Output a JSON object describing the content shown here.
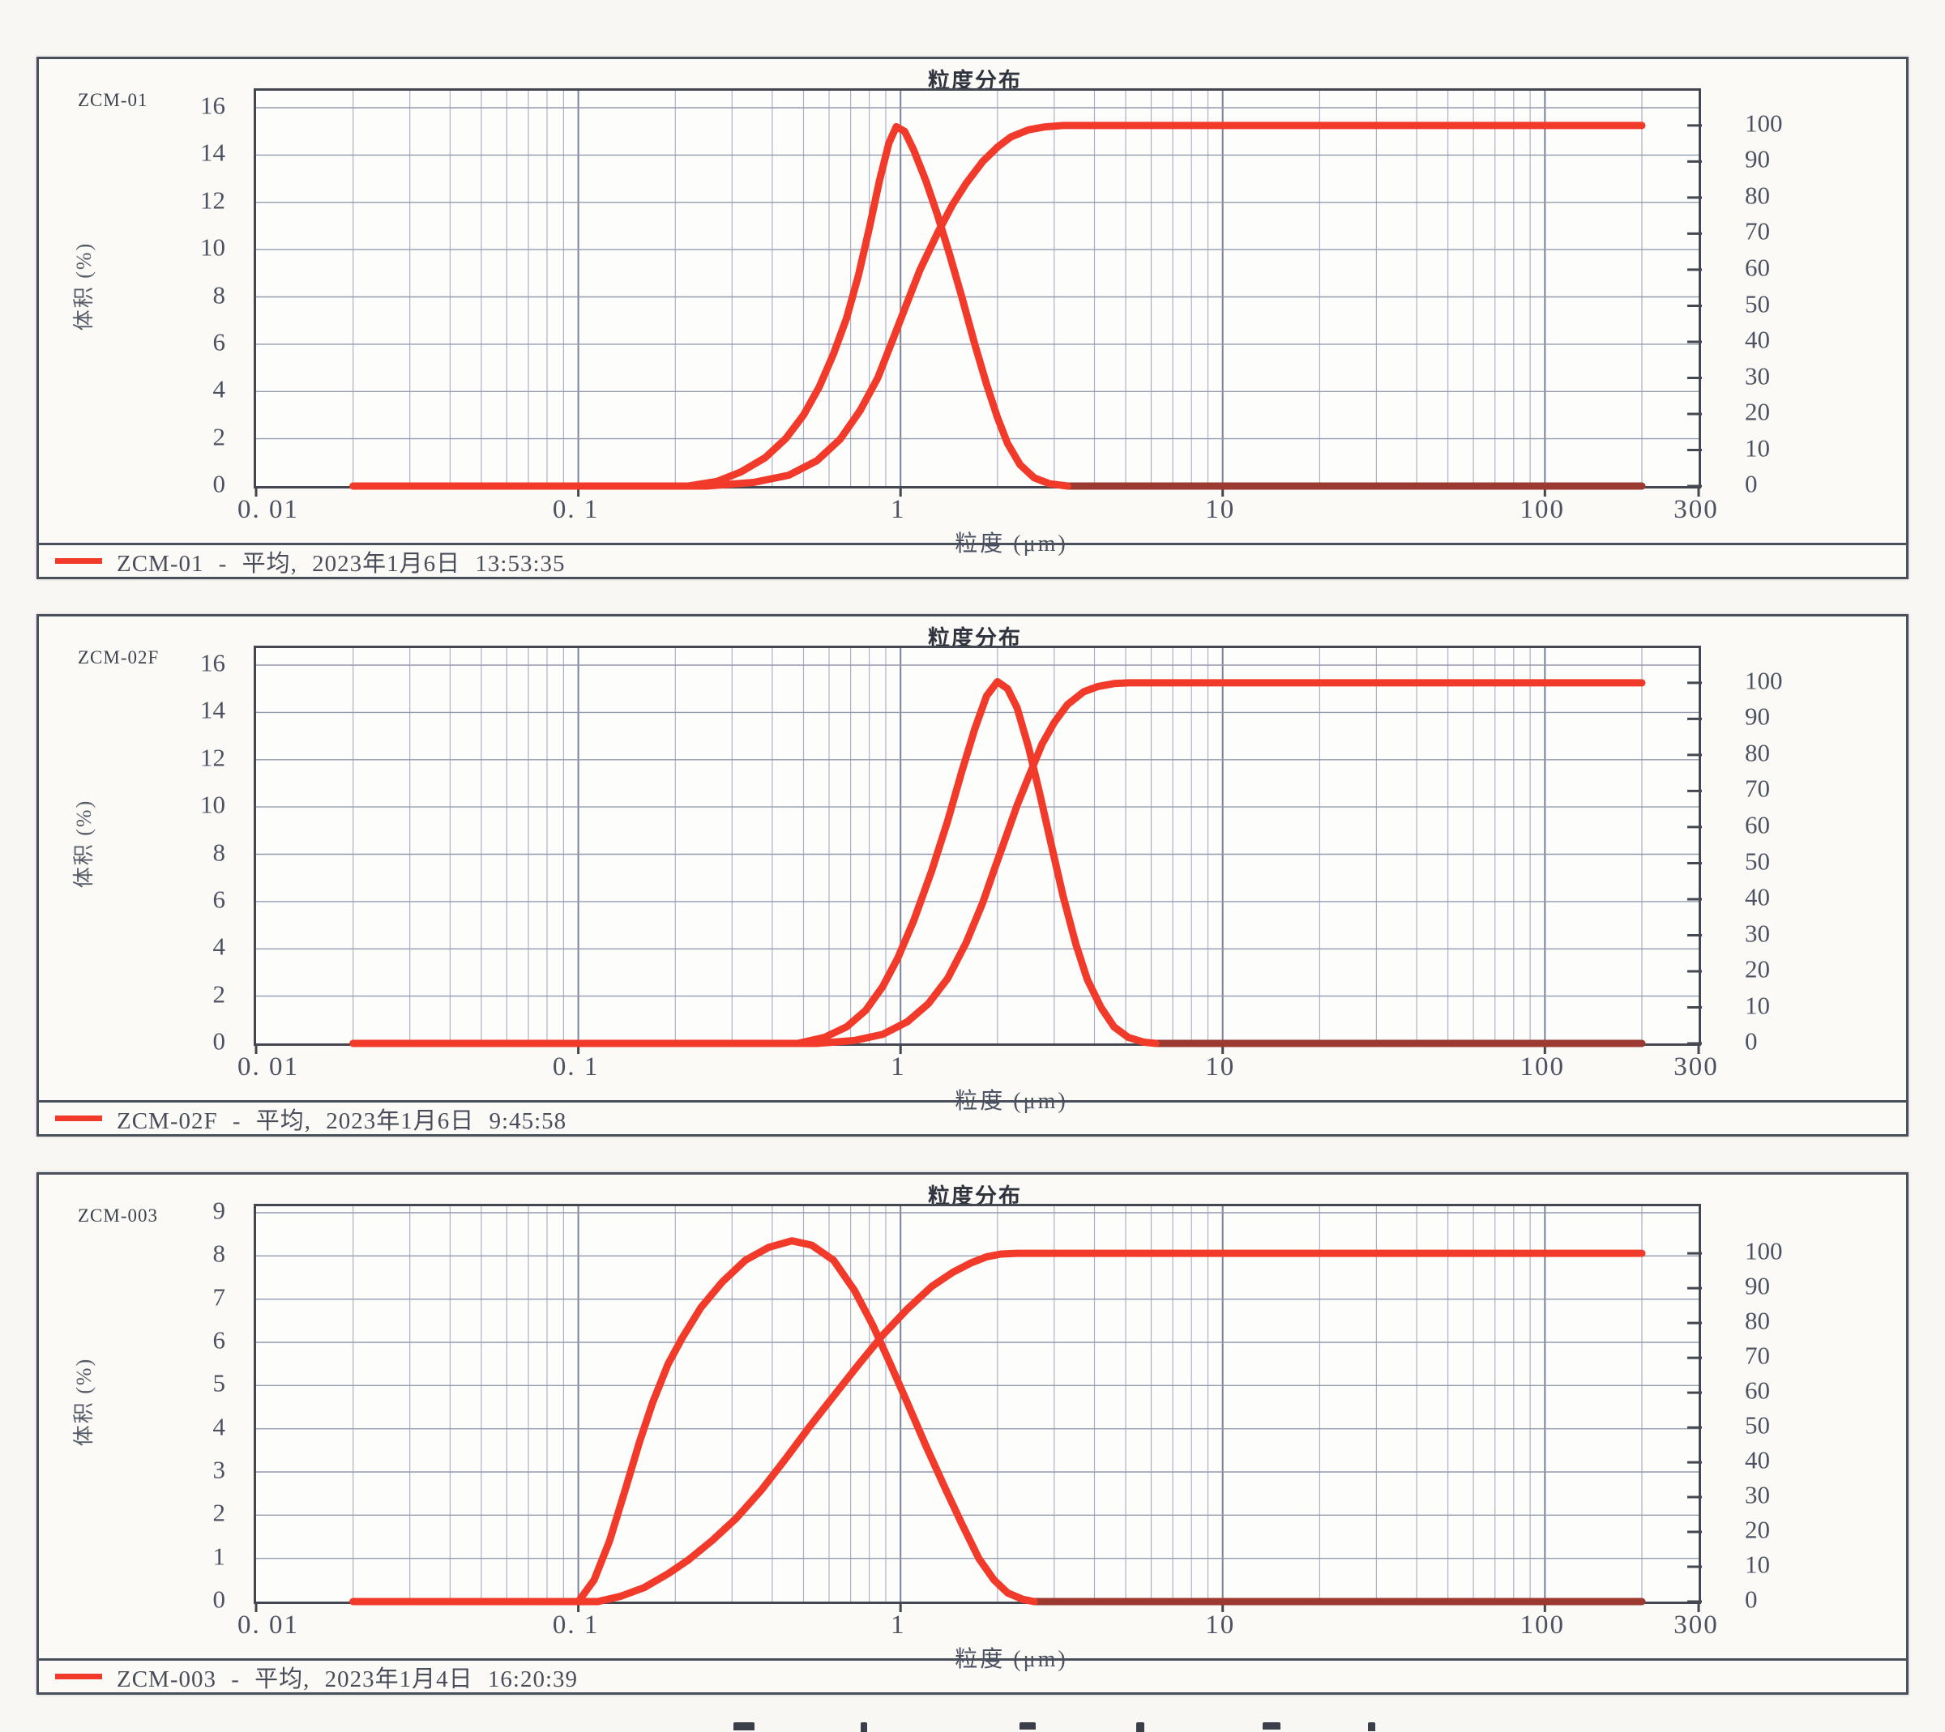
{
  "palette": {
    "red": "#f23a2b",
    "darkred": "#9c3a31",
    "grid_major": "#7b8299",
    "grid_minor": "#acb2c4",
    "grid_horizontal": "#949aae",
    "axis": "#43474f"
  },
  "chart_data": [
    {
      "type": "line",
      "title": "粒度分布",
      "sample": "ZCM-01",
      "xlabel": "粒度 (μm)",
      "ylabel": "体积 (%)",
      "legend": "ZCM-01 - 平均, 2023年1月6日 13:53:35",
      "x_scale": "log",
      "xlim": [
        0.01,
        300
      ],
      "ylim_left": [
        0,
        16
      ],
      "ylim_right": [
        0,
        100
      ],
      "x_ticks": [
        {
          "v": 0.01,
          "label": "0. 01"
        },
        {
          "v": 0.1,
          "label": "0. 1"
        },
        {
          "v": 1,
          "label": "1"
        },
        {
          "v": 10,
          "label": "10"
        },
        {
          "v": 100,
          "label": "100"
        },
        {
          "v": 300,
          "label": "300"
        }
      ],
      "y_ticks_left": [
        0,
        2,
        4,
        6,
        8,
        10,
        12,
        14,
        16
      ],
      "y_ticks_right": [
        0,
        10,
        20,
        30,
        40,
        50,
        60,
        70,
        80,
        90,
        100
      ],
      "series": [
        {
          "id": "baseline-tail",
          "axis": "left",
          "color": "darkred",
          "points": [
            [
              3.3,
              0
            ],
            [
              200,
              0
            ]
          ]
        },
        {
          "id": "cumulative",
          "axis": "right",
          "color": "red",
          "points": [
            [
              0.02,
              0
            ],
            [
              0.25,
              0
            ],
            [
              0.35,
              1
            ],
            [
              0.45,
              3
            ],
            [
              0.55,
              7
            ],
            [
              0.65,
              13
            ],
            [
              0.75,
              21
            ],
            [
              0.85,
              30
            ],
            [
              0.95,
              41
            ],
            [
              1.05,
              51
            ],
            [
              1.15,
              60
            ],
            [
              1.3,
              70
            ],
            [
              1.45,
              78
            ],
            [
              1.6,
              84
            ],
            [
              1.8,
              90
            ],
            [
              2.0,
              94
            ],
            [
              2.2,
              96.8
            ],
            [
              2.5,
              98.8
            ],
            [
              2.8,
              99.6
            ],
            [
              3.2,
              100
            ],
            [
              200,
              100
            ]
          ]
        },
        {
          "id": "frequency",
          "axis": "left",
          "color": "red",
          "points": [
            [
              0.02,
              0
            ],
            [
              0.22,
              0
            ],
            [
              0.27,
              0.2
            ],
            [
              0.32,
              0.6
            ],
            [
              0.38,
              1.2
            ],
            [
              0.44,
              2.0
            ],
            [
              0.5,
              3.0
            ],
            [
              0.56,
              4.2
            ],
            [
              0.62,
              5.6
            ],
            [
              0.68,
              7.1
            ],
            [
              0.74,
              8.9
            ],
            [
              0.8,
              10.9
            ],
            [
              0.86,
              12.9
            ],
            [
              0.92,
              14.5
            ],
            [
              0.97,
              15.2
            ],
            [
              1.03,
              15.0
            ],
            [
              1.1,
              14.2
            ],
            [
              1.2,
              12.9
            ],
            [
              1.3,
              11.5
            ],
            [
              1.42,
              9.8
            ],
            [
              1.55,
              8.0
            ],
            [
              1.7,
              6.0
            ],
            [
              1.85,
              4.3
            ],
            [
              2.0,
              2.9
            ],
            [
              2.15,
              1.8
            ],
            [
              2.35,
              0.9
            ],
            [
              2.6,
              0.35
            ],
            [
              2.9,
              0.1
            ],
            [
              3.3,
              0
            ]
          ]
        }
      ]
    },
    {
      "type": "line",
      "title": "粒度分布",
      "sample": "ZCM-02F",
      "xlabel": "粒度 (μm)",
      "ylabel": "体积 (%)",
      "legend": "ZCM-02F - 平均, 2023年1月6日 9:45:58",
      "x_scale": "log",
      "xlim": [
        0.01,
        300
      ],
      "ylim_left": [
        0,
        16
      ],
      "ylim_right": [
        0,
        100
      ],
      "x_ticks": [
        {
          "v": 0.01,
          "label": "0. 01"
        },
        {
          "v": 0.1,
          "label": "0. 1"
        },
        {
          "v": 1,
          "label": "1"
        },
        {
          "v": 10,
          "label": "10"
        },
        {
          "v": 100,
          "label": "100"
        },
        {
          "v": 300,
          "label": "300"
        }
      ],
      "y_ticks_left": [
        0,
        2,
        4,
        6,
        8,
        10,
        12,
        14,
        16
      ],
      "y_ticks_right": [
        0,
        10,
        20,
        30,
        40,
        50,
        60,
        70,
        80,
        90,
        100
      ],
      "series": [
        {
          "id": "baseline-tail",
          "axis": "left",
          "color": "darkred",
          "points": [
            [
              6.2,
              0
            ],
            [
              200,
              0
            ]
          ]
        },
        {
          "id": "cumulative",
          "axis": "right",
          "color": "red",
          "points": [
            [
              0.02,
              0
            ],
            [
              0.55,
              0
            ],
            [
              0.72,
              0.8
            ],
            [
              0.88,
              2.5
            ],
            [
              1.05,
              6
            ],
            [
              1.22,
              11
            ],
            [
              1.4,
              18
            ],
            [
              1.6,
              28
            ],
            [
              1.8,
              39
            ],
            [
              1.95,
              48
            ],
            [
              2.1,
              56
            ],
            [
              2.3,
              66
            ],
            [
              2.5,
              74
            ],
            [
              2.75,
              83
            ],
            [
              3.0,
              89
            ],
            [
              3.3,
              94
            ],
            [
              3.7,
              97.5
            ],
            [
              4.1,
              99
            ],
            [
              4.6,
              99.8
            ],
            [
              5.1,
              100
            ],
            [
              200,
              100
            ]
          ]
        },
        {
          "id": "frequency",
          "axis": "left",
          "color": "red",
          "points": [
            [
              0.02,
              0
            ],
            [
              0.48,
              0
            ],
            [
              0.58,
              0.25
            ],
            [
              0.68,
              0.7
            ],
            [
              0.78,
              1.4
            ],
            [
              0.88,
              2.4
            ],
            [
              0.98,
              3.6
            ],
            [
              1.1,
              5.2
            ],
            [
              1.25,
              7.3
            ],
            [
              1.4,
              9.4
            ],
            [
              1.55,
              11.5
            ],
            [
              1.7,
              13.3
            ],
            [
              1.85,
              14.7
            ],
            [
              2.0,
              15.3
            ],
            [
              2.15,
              15.0
            ],
            [
              2.3,
              14.2
            ],
            [
              2.5,
              12.5
            ],
            [
              2.7,
              10.6
            ],
            [
              2.95,
              8.3
            ],
            [
              3.2,
              6.2
            ],
            [
              3.5,
              4.2
            ],
            [
              3.8,
              2.7
            ],
            [
              4.2,
              1.5
            ],
            [
              4.6,
              0.7
            ],
            [
              5.1,
              0.25
            ],
            [
              5.7,
              0.05
            ],
            [
              6.2,
              0
            ]
          ]
        }
      ]
    },
    {
      "type": "line",
      "title": "粒度分布",
      "sample": "ZCM-003",
      "xlabel": "粒度 (μm)",
      "ylabel": "体积 (%)",
      "legend": "ZCM-003 - 平均, 2023年1月4日 16:20:39",
      "x_scale": "log",
      "xlim": [
        0.01,
        300
      ],
      "ylim_left": [
        0,
        9
      ],
      "ylim_right": [
        0,
        100
      ],
      "x_ticks": [
        {
          "v": 0.01,
          "label": "0. 01"
        },
        {
          "v": 0.1,
          "label": "0. 1"
        },
        {
          "v": 1,
          "label": "1"
        },
        {
          "v": 10,
          "label": "10"
        },
        {
          "v": 100,
          "label": "100"
        },
        {
          "v": 300,
          "label": "300"
        }
      ],
      "y_ticks_left": [
        0,
        1,
        2,
        3,
        4,
        5,
        6,
        7,
        8,
        9
      ],
      "y_ticks_right": [
        0,
        10,
        20,
        30,
        40,
        50,
        60,
        70,
        80,
        90,
        100
      ],
      "series": [
        {
          "id": "baseline-tail",
          "axis": "left",
          "color": "darkred",
          "points": [
            [
              2.6,
              0
            ],
            [
              200,
              0
            ]
          ]
        },
        {
          "id": "cumulative",
          "axis": "right",
          "color": "red",
          "points": [
            [
              0.02,
              0
            ],
            [
              0.115,
              0
            ],
            [
              0.135,
              1.5
            ],
            [
              0.16,
              4
            ],
            [
              0.19,
              8
            ],
            [
              0.22,
              12
            ],
            [
              0.26,
              17.5
            ],
            [
              0.31,
              24
            ],
            [
              0.37,
              32
            ],
            [
              0.44,
              41
            ],
            [
              0.52,
              50
            ],
            [
              0.62,
              59
            ],
            [
              0.74,
              68
            ],
            [
              0.88,
              76.5
            ],
            [
              1.05,
              84
            ],
            [
              1.25,
              90.5
            ],
            [
              1.45,
              94.5
            ],
            [
              1.65,
              97.2
            ],
            [
              1.85,
              99
            ],
            [
              2.05,
              99.8
            ],
            [
              2.3,
              100
            ],
            [
              200,
              100
            ]
          ]
        },
        {
          "id": "frequency",
          "axis": "left",
          "color": "red",
          "points": [
            [
              0.02,
              0
            ],
            [
              0.1,
              0
            ],
            [
              0.112,
              0.5
            ],
            [
              0.125,
              1.4
            ],
            [
              0.14,
              2.6
            ],
            [
              0.155,
              3.7
            ],
            [
              0.17,
              4.6
            ],
            [
              0.19,
              5.5
            ],
            [
              0.21,
              6.1
            ],
            [
              0.24,
              6.8
            ],
            [
              0.28,
              7.4
            ],
            [
              0.33,
              7.9
            ],
            [
              0.39,
              8.2
            ],
            [
              0.46,
              8.35
            ],
            [
              0.53,
              8.25
            ],
            [
              0.62,
              7.9
            ],
            [
              0.72,
              7.2
            ],
            [
              0.82,
              6.4
            ],
            [
              0.93,
              5.5
            ],
            [
              1.05,
              4.6
            ],
            [
              1.2,
              3.6
            ],
            [
              1.38,
              2.6
            ],
            [
              1.55,
              1.8
            ],
            [
              1.75,
              1.0
            ],
            [
              1.95,
              0.5
            ],
            [
              2.15,
              0.2
            ],
            [
              2.4,
              0.05
            ],
            [
              2.6,
              0
            ]
          ]
        }
      ]
    }
  ]
}
